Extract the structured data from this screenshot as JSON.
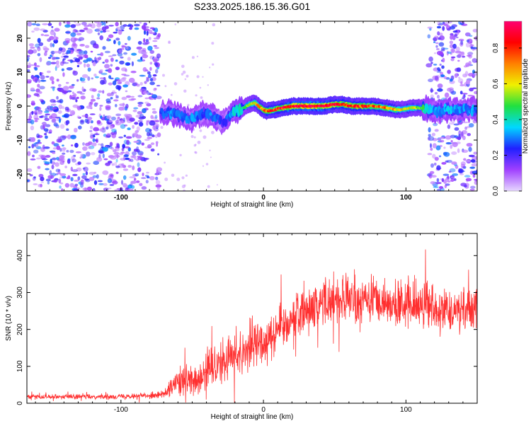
{
  "chart_data": [
    {
      "type": "heatmap",
      "title": "S233.2025.186.15.36.G01",
      "xlabel": "Height of straight line (km)",
      "ylabel": "Frequency (Hz)",
      "xlim": [
        -166,
        150
      ],
      "ylim": [
        -25,
        25
      ],
      "xticks": [
        -100,
        0,
        100
      ],
      "yticks": [
        -20,
        -10,
        0,
        10,
        20
      ],
      "colorbar": {
        "label": "Normalized spectral amplitude",
        "range": [
          0,
          0.95
        ],
        "ticks": [
          0.0,
          0.2,
          0.4,
          0.6,
          0.8
        ],
        "tick_labels": [
          "0.0",
          "0.2",
          "0.4",
          "0.6",
          "0.8"
        ],
        "colormap": [
          "#e6d6ff",
          "#a040ff",
          "#2020ff",
          "#00d8ff",
          "#20e040",
          "#f0f000",
          "#ff8000",
          "#ff0000",
          "#ff0070"
        ]
      },
      "noise_regions": [
        [
          -166,
          -73
        ],
        [
          116,
          150
        ]
      ],
      "ridge": {
        "x": [
          -72,
          -65,
          -58,
          -50,
          -42,
          -35,
          -28,
          -22,
          -16,
          -10,
          -6,
          -2,
          2,
          8,
          14,
          20,
          30,
          42,
          50,
          56,
          62,
          70,
          78,
          86,
          92,
          98,
          104,
          110,
          115,
          122,
          130,
          138,
          145,
          150
        ],
        "freq": [
          -2,
          -2,
          -3,
          -4,
          -2,
          -3,
          -5,
          -2,
          -1,
          0.5,
          1,
          -0.5,
          -1.5,
          -1,
          -0.5,
          0,
          0,
          0,
          0.5,
          0.5,
          0,
          0,
          0,
          -0.5,
          -1,
          -1,
          -0.5,
          -0.5,
          -1,
          -1.5,
          -1,
          -1,
          -1,
          -1
        ],
        "amplitude": [
          0.25,
          0.3,
          0.3,
          0.3,
          0.25,
          0.3,
          0.2,
          0.35,
          0.4,
          0.55,
          0.6,
          0.7,
          0.75,
          0.8,
          0.85,
          0.9,
          0.92,
          0.9,
          0.85,
          0.8,
          0.8,
          0.78,
          0.75,
          0.7,
          0.65,
          0.6,
          0.6,
          0.5,
          0.35,
          0.3,
          0.35,
          0.3,
          0.3,
          0.3
        ]
      }
    },
    {
      "type": "line",
      "title": "",
      "xlabel": "Height of straight line (km)",
      "ylabel": "SNR (10 * v/v)",
      "xlim": [
        -166,
        150
      ],
      "ylim": [
        0,
        460
      ],
      "xticks": [
        -100,
        0,
        100
      ],
      "yticks": [
        0,
        100,
        200,
        300,
        400
      ],
      "line_color": "#ff3030",
      "series": [
        {
          "x": [
            -166,
            -140,
            -110,
            -90,
            -75,
            -70,
            -65,
            -60,
            -55,
            -50,
            -45,
            -40,
            -35,
            -30,
            -25,
            -20,
            -15,
            -10,
            -5,
            0,
            5,
            10,
            15,
            20,
            25,
            30,
            35,
            40,
            45,
            50,
            55,
            60,
            65,
            70,
            75,
            80,
            85,
            90,
            95,
            100,
            105,
            110,
            115,
            120,
            125,
            130,
            135,
            140,
            145,
            150
          ],
          "values": [
            18,
            18,
            18,
            20,
            22,
            25,
            40,
            55,
            60,
            55,
            65,
            85,
            100,
            110,
            120,
            130,
            140,
            155,
            165,
            170,
            185,
            200,
            215,
            230,
            245,
            255,
            265,
            270,
            275,
            280,
            280,
            280,
            275,
            275,
            280,
            275,
            275,
            270,
            270,
            270,
            265,
            265,
            265,
            260,
            260,
            255,
            255,
            250,
            250,
            250
          ],
          "spread": [
            6,
            6,
            6,
            7,
            8,
            10,
            25,
            40,
            40,
            40,
            45,
            50,
            55,
            55,
            55,
            55,
            60,
            60,
            60,
            60,
            60,
            60,
            60,
            60,
            60,
            60,
            60,
            60,
            60,
            60,
            60,
            60,
            60,
            60,
            60,
            60,
            60,
            60,
            60,
            60,
            60,
            60,
            60,
            60,
            60,
            60,
            60,
            60,
            60,
            60
          ]
        }
      ]
    }
  ]
}
